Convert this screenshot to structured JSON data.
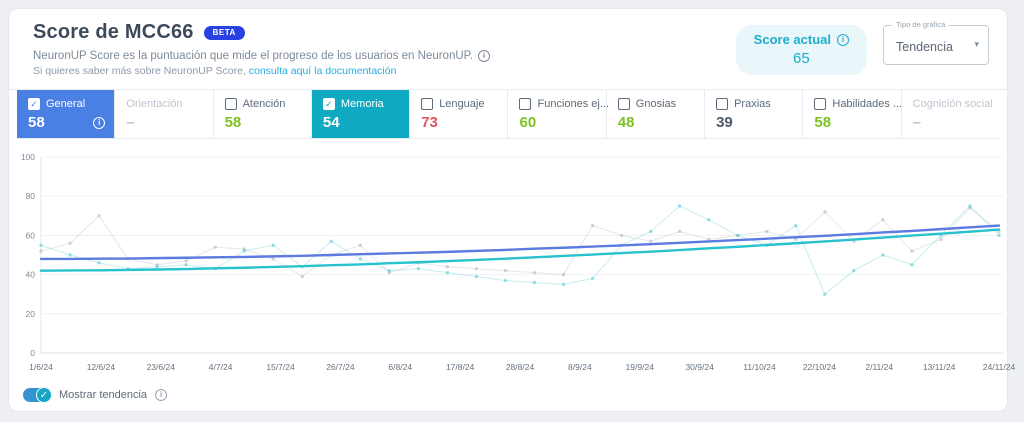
{
  "header": {
    "title": "Score de MCC66",
    "beta_badge": "BETA",
    "subtitle": "NeuronUP Score es la puntuación que mide el progreso de los usuarios en NeuronUP.",
    "subtitle2_prefix": "Si quieres saber más sobre NeuronUP Score,",
    "subtitle2_link": "consulta aquí la documentación",
    "score_actual": {
      "label": "Score actual",
      "value": "65"
    },
    "chart_type": {
      "label": "Tipo de gráfica",
      "value": "Tendencia"
    }
  },
  "colors": {
    "accent_blue": "#4a7fe4",
    "accent_teal": "#0fa9c1",
    "green": "#7cc321",
    "red": "#de5465",
    "link_blue": "#29abe2",
    "score_teal": "#1caecb",
    "beta_blue": "#2742e0"
  },
  "tabs": [
    {
      "key": "general",
      "label": "General",
      "value": "58",
      "checked": true,
      "selected": true,
      "accent": "#4a7fe4",
      "value_color": "#ffffff",
      "has_info": true,
      "disabled": false
    },
    {
      "key": "orientacion",
      "label": "Orientación",
      "value": "–",
      "checked": false,
      "selected": false,
      "accent": "",
      "value_color": "#bcc5cf",
      "has_info": false,
      "disabled": true
    },
    {
      "key": "atencion",
      "label": "Atención",
      "value": "58",
      "checked": false,
      "selected": false,
      "accent": "",
      "value_color": "#7cc321",
      "has_info": false,
      "disabled": false
    },
    {
      "key": "memoria",
      "label": "Memoria",
      "value": "54",
      "checked": true,
      "selected": true,
      "accent": "#0fa9c1",
      "value_color": "#ffffff",
      "has_info": false,
      "disabled": false
    },
    {
      "key": "lenguaje",
      "label": "Lenguaje",
      "value": "73",
      "checked": false,
      "selected": false,
      "accent": "",
      "value_color": "#de5465",
      "has_info": false,
      "disabled": false
    },
    {
      "key": "funciones-ejecutivas",
      "label": "Funciones ej...",
      "value": "60",
      "checked": false,
      "selected": false,
      "accent": "",
      "value_color": "#7cc321",
      "has_info": false,
      "disabled": false
    },
    {
      "key": "gnosias",
      "label": "Gnosias",
      "value": "48",
      "checked": false,
      "selected": false,
      "accent": "",
      "value_color": "#7cc321",
      "has_info": false,
      "disabled": false
    },
    {
      "key": "praxias",
      "label": "Praxias",
      "value": "39",
      "checked": false,
      "selected": false,
      "accent": "",
      "value_color": "#4e5a67",
      "has_info": false,
      "disabled": false
    },
    {
      "key": "habilidades-sociales",
      "label": "Habilidades ...",
      "value": "58",
      "checked": false,
      "selected": false,
      "accent": "",
      "value_color": "#7cc321",
      "has_info": false,
      "disabled": false
    },
    {
      "key": "cognicion-social",
      "label": "Cognición social",
      "value": "–",
      "checked": false,
      "selected": false,
      "accent": "",
      "value_color": "#bcc5cf",
      "has_info": false,
      "disabled": true
    }
  ],
  "chart_data": {
    "type": "line",
    "title": "",
    "xlabel": "",
    "ylabel": "",
    "ylim": [
      0,
      100
    ],
    "y_ticks": [
      0,
      20,
      40,
      60,
      80,
      100
    ],
    "grid": "horizontal",
    "legend_position": "none",
    "x_tick_labels": [
      "1/6/24",
      "12/6/24",
      "23/6/24",
      "4/7/24",
      "15/7/24",
      "26/7/24",
      "6/8/24",
      "17/8/24",
      "28/8/24",
      "8/9/24",
      "19/9/24",
      "30/9/24",
      "11/10/24",
      "22/10/24",
      "2/11/24",
      "13/11/24",
      "24/11/24"
    ],
    "series": [
      {
        "name": "General (datos)",
        "style": "raw",
        "color": "#aab6c0",
        "values": [
          52,
          56,
          70,
          48,
          45,
          47,
          54,
          53,
          48,
          39,
          50,
          55,
          41,
          46,
          44,
          43,
          42,
          41,
          40,
          65,
          60,
          57,
          62,
          58,
          60,
          62,
          58,
          72,
          57,
          68,
          52,
          58,
          74,
          62
        ]
      },
      {
        "name": "Memoria (datos)",
        "style": "raw",
        "color": "#4fc9cf",
        "values": [
          55,
          50,
          46,
          43,
          44,
          45,
          43,
          52,
          55,
          44,
          57,
          48,
          42,
          43,
          41,
          39,
          37,
          36,
          35,
          38,
          55,
          62,
          75,
          68,
          60,
          55,
          65,
          30,
          42,
          50,
          45,
          60,
          75,
          60
        ]
      },
      {
        "name": "General (tendencia)",
        "style": "trend",
        "color": "#5b7be0",
        "values": [
          48,
          48,
          48.1,
          48.2,
          48.4,
          48.6,
          48.8,
          49,
          49.3,
          49.6,
          50,
          50.4,
          50.8,
          51.2,
          51.6,
          52.1,
          52.6,
          53.2,
          53.7,
          54.3,
          54.9,
          55.5,
          56.2,
          56.9,
          57.6,
          58.3,
          59.1,
          59.8,
          60.6,
          61.5,
          62.3,
          63.2,
          64.1,
          65
        ]
      },
      {
        "name": "Memoria (tendencia)",
        "style": "trend",
        "color": "#27c2cd",
        "values": [
          42,
          42.1,
          42.2,
          42.4,
          42.6,
          42.8,
          43.2,
          43.5,
          43.9,
          44.3,
          44.8,
          45.2,
          45.8,
          46.3,
          46.9,
          47.5,
          48.1,
          48.8,
          49.5,
          50.2,
          51,
          51.7,
          52.5,
          53.4,
          54.2,
          55.1,
          56,
          56.9,
          57.9,
          58.9,
          59.9,
          60.9,
          61.9,
          63
        ]
      }
    ]
  },
  "footer": {
    "toggle_label": "Mostrar tendencia",
    "toggle_on": true
  }
}
